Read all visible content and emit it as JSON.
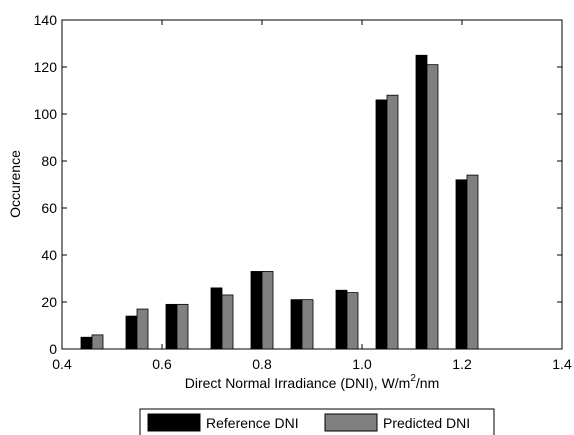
{
  "chart_data": {
    "type": "bar",
    "xlabel": "Direct Normal Irradiance (DNI), W/m",
    "xlabel_superscript": "2",
    "xlabel_suffix": "/nm",
    "ylabel": "Occurence",
    "xlim": [
      0.4,
      1.4
    ],
    "ylim": [
      0,
      140
    ],
    "xticks": [
      "0.4",
      "0.6",
      "0.8",
      "1.0",
      "1.2",
      "1.4"
    ],
    "yticks": [
      "0",
      "20",
      "40",
      "60",
      "80",
      "100",
      "120",
      "140"
    ],
    "grid": false,
    "legend_position": "bottom",
    "x": [
      0.46,
      0.55,
      0.63,
      0.72,
      0.8,
      0.88,
      0.97,
      1.05,
      1.13,
      1.21
    ],
    "series": [
      {
        "name": "Reference DNI",
        "color": "#000000",
        "values": [
          5,
          14,
          19,
          26,
          33,
          21,
          25,
          106,
          125,
          72
        ]
      },
      {
        "name": "Predicted DNI",
        "color": "#808080",
        "values": [
          6,
          17,
          19,
          23,
          33,
          21,
          24,
          108,
          121,
          74
        ]
      }
    ]
  }
}
